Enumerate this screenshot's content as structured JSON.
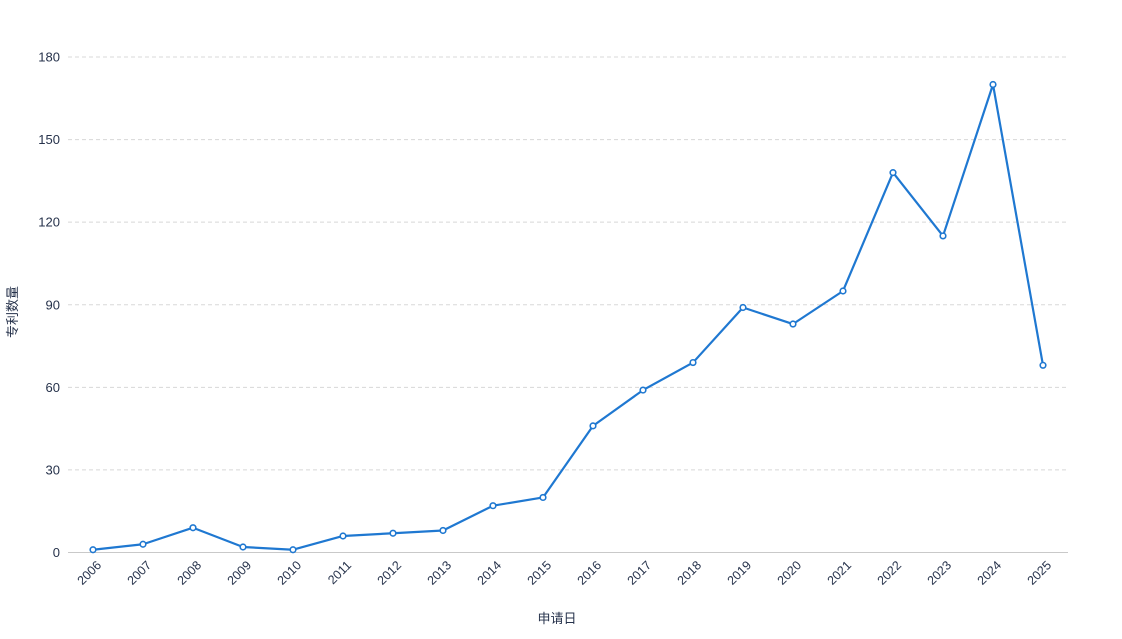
{
  "page": {
    "background": "#ffffff"
  },
  "chart_data": {
    "type": "line",
    "title": "",
    "x": [
      "2006",
      "2007",
      "2008",
      "2009",
      "2010",
      "2011",
      "2012",
      "2013",
      "2014",
      "2015",
      "2016",
      "2017",
      "2018",
      "2019",
      "2020",
      "2021",
      "2022",
      "2023",
      "2024",
      "2025"
    ],
    "series": [
      {
        "name": "专利数量",
        "values": [
          1,
          3,
          9,
          2,
          1,
          6,
          7,
          8,
          17,
          20,
          46,
          59,
          69,
          89,
          83,
          95,
          138,
          115,
          170,
          68
        ]
      }
    ],
    "xlabel": "申请日",
    "ylabel": "专利数量",
    "ylim": [
      0,
      180
    ],
    "yticks": [
      0,
      30,
      60,
      90,
      120,
      150,
      180
    ],
    "grid": "dashed-horizontal",
    "legend": "none",
    "x_label_rotation": -45,
    "marker": "hollow-circle",
    "colors": {
      "line": "#1f78d1",
      "marker_fill": "#ffffff",
      "grid": "#d8d8d8",
      "axis_line": "#c9c9c9",
      "label_text": "#26324b"
    }
  }
}
